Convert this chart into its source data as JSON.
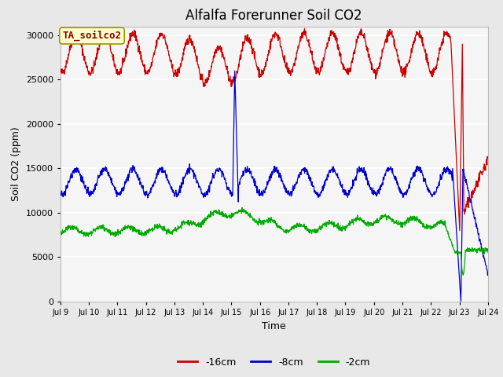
{
  "title": "Alfalfa Forerunner Soil CO2",
  "xlabel": "Time",
  "ylabel": "Soil CO2 (ppm)",
  "annotation": "TA_soilco2",
  "ylim": [
    0,
    31000
  ],
  "yticks": [
    0,
    5000,
    10000,
    15000,
    20000,
    25000,
    30000
  ],
  "x_labels": [
    "Jul 9",
    "Jul 10",
    "Jul 11",
    "Jul 12",
    "Jul 13",
    "Jul 14",
    "Jul 15",
    "Jul 16",
    "Jul 17",
    "Jul 18",
    "Jul 19",
    "Jul 20",
    "Jul 21",
    "Jul 22",
    "Jul 23",
    "Jul 24"
  ],
  "line_colors": [
    "#cc0000",
    "#0000cc",
    "#00aa00"
  ],
  "legend_labels": [
    "-16cm",
    "-8cm",
    "-2cm"
  ],
  "bg_color": "#e8e8e8",
  "plot_bg": "#e8e8e8",
  "inner_bg": "#f5f5f5",
  "grid_color": "#ffffff",
  "title_fontsize": 12,
  "label_fontsize": 9,
  "tick_fontsize": 8
}
